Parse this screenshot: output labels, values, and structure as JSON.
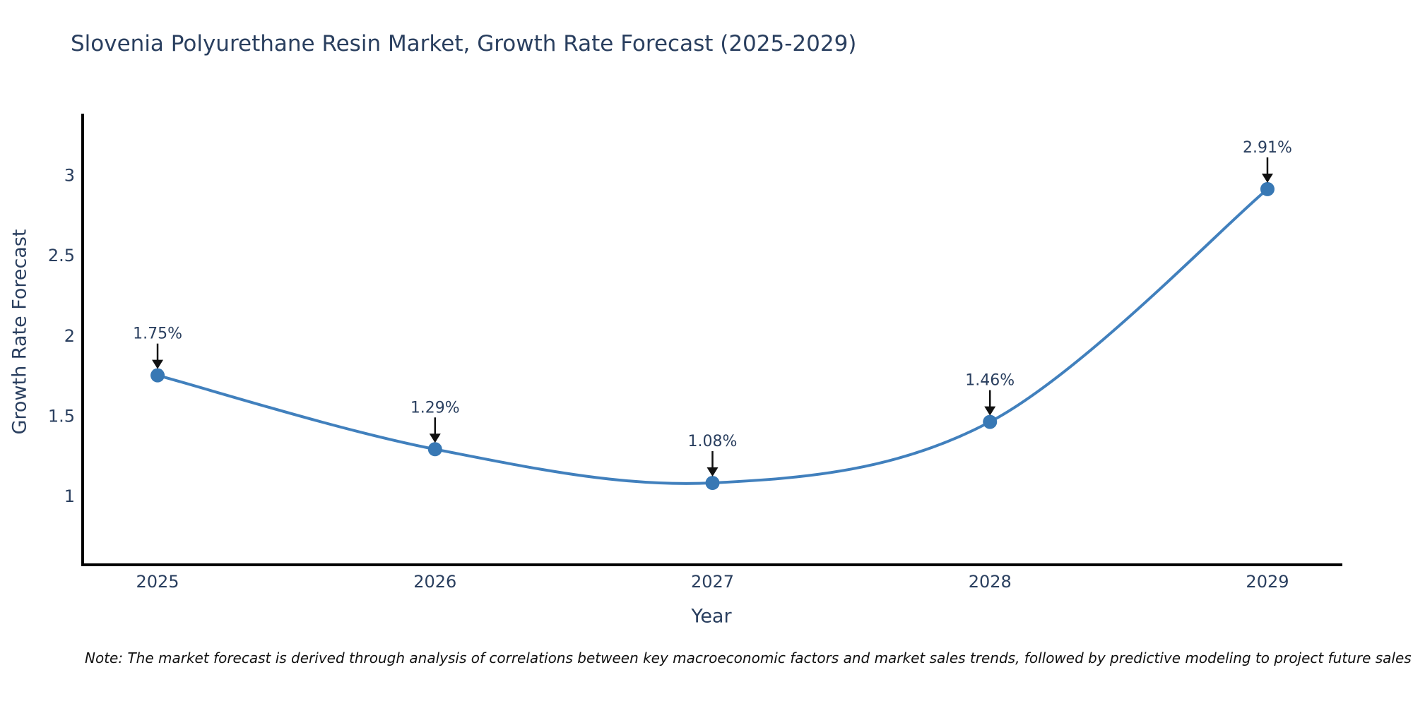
{
  "note": "Note: The market forecast is derived through analysis of correlations between key macroeconomic factors and market sales trends, followed by predictive modeling to project future sales",
  "chart_data": {
    "type": "line",
    "title": "Slovenia Polyurethane Resin Market, Growth Rate Forecast (2025-2029)",
    "xlabel": "Year",
    "ylabel": "Growth Rate Forecast",
    "x": [
      2025,
      2026,
      2027,
      2028,
      2029
    ],
    "y": [
      1.75,
      1.29,
      1.08,
      1.46,
      2.91
    ],
    "data_labels": [
      "1.75%",
      "1.29%",
      "1.08%",
      "1.46%",
      "2.91%"
    ],
    "xticks": [
      "2025",
      "2026",
      "2027",
      "2028",
      "2029"
    ],
    "yticks": [
      1,
      1.5,
      2,
      2.5,
      3
    ],
    "ytick_labels": [
      "1",
      "1.5",
      "2",
      "2.5",
      "3"
    ],
    "xlim": [
      2024.73,
      2029.27
    ],
    "ylim": [
      0.57,
      3.38
    ],
    "grid": false,
    "legend": "none",
    "line_shape": "spline",
    "colors": {
      "line": "#4180bd",
      "marker": "#3878b4",
      "arrow": "#111111",
      "text": "#2a3f5f",
      "axis": "#000000"
    }
  }
}
